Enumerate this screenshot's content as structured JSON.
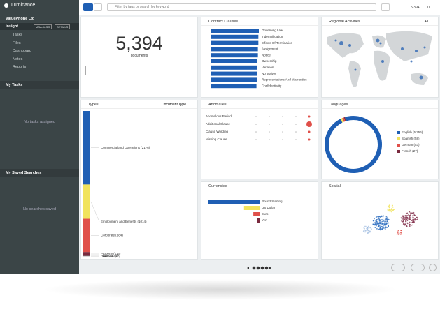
{
  "sidebar": {
    "brand": "Luminance",
    "company": "ValuePhone Ltd",
    "workspace": "Insight",
    "tags": [
      "MSA.ALSG",
      "SE7AILS"
    ],
    "nav": [
      "Tasks",
      "Files",
      "Dashboard",
      "Notes",
      "Reports"
    ],
    "tasks_title": "My Tasks",
    "tasks_empty": "No tasks assigned",
    "searches_title": "My Saved Searches",
    "searches_empty": "No searches saved"
  },
  "toolbar": {
    "search_placeholder": "Filter by tags or search by keyword",
    "doc_count": "5,394",
    "flag_count": "0"
  },
  "summary": {
    "count": "5,394",
    "unit": "documents"
  },
  "clauses": {
    "title": "Contract Clauses",
    "items": [
      {
        "label": "Governing Law",
        "value": 100
      },
      {
        "label": "Indemnification",
        "value": 99
      },
      {
        "label": "Effects Of Termination",
        "value": 99
      },
      {
        "label": "Assignment",
        "value": 98
      },
      {
        "label": "Notice",
        "value": 98
      },
      {
        "label": "Ownership",
        "value": 97
      },
      {
        "label": "Variation",
        "value": 97
      },
      {
        "label": "No Waiver",
        "value": 96
      },
      {
        "label": "Representations And Warranties",
        "value": 96
      },
      {
        "label": "Confidentiality",
        "value": 95
      }
    ]
  },
  "regional": {
    "title": "Regional Activities",
    "filter": "All"
  },
  "types": {
    "title": "Types",
    "filter": "Document Type",
    "items": [
      {
        "label": "Commercial and Operations (2176)",
        "value": 2176,
        "color": "#1f5fb4"
      },
      {
        "label": "Employment and Benefits (1014)",
        "value": 1014,
        "color": "#f1e35c"
      },
      {
        "label": "Corporate (984)",
        "value": 984,
        "color": "#e0504a"
      },
      {
        "label": "Property (116)",
        "value": 116,
        "color": "#7a2a3e"
      },
      {
        "label": "Financial (5)",
        "value": 5,
        "color": "#4e9a8c"
      },
      {
        "label": "Unknown (40)",
        "value": 40,
        "color": "#d6d6d6"
      }
    ]
  },
  "anomalies": {
    "title": "Anomalies",
    "rows": [
      "Anomalous Period",
      "Additional Clause",
      "Clause Wording",
      "Missing Clause"
    ]
  },
  "languages": {
    "title": "Languages",
    "items": [
      {
        "label": "English (5,256)",
        "value": 5256,
        "color": "#1f5fb4"
      },
      {
        "label": "Spanish (58)",
        "value": 58,
        "color": "#f1e35c"
      },
      {
        "label": "German (53)",
        "value": 53,
        "color": "#e0504a"
      },
      {
        "label": "French (27)",
        "value": 27,
        "color": "#7a2a3e"
      }
    ]
  },
  "currencies": {
    "title": "Currencies",
    "items": [
      {
        "label": "Pound Sterling",
        "value": 100,
        "color": "#1f5fb4"
      },
      {
        "label": "US Dollar",
        "value": 30,
        "color": "#f1e35c"
      },
      {
        "label": "Euro",
        "value": 12,
        "color": "#e0504a"
      },
      {
        "label": "Yen",
        "value": 5,
        "color": "#7a2a3e"
      }
    ]
  },
  "spatial": {
    "title": "Spatial"
  }
}
